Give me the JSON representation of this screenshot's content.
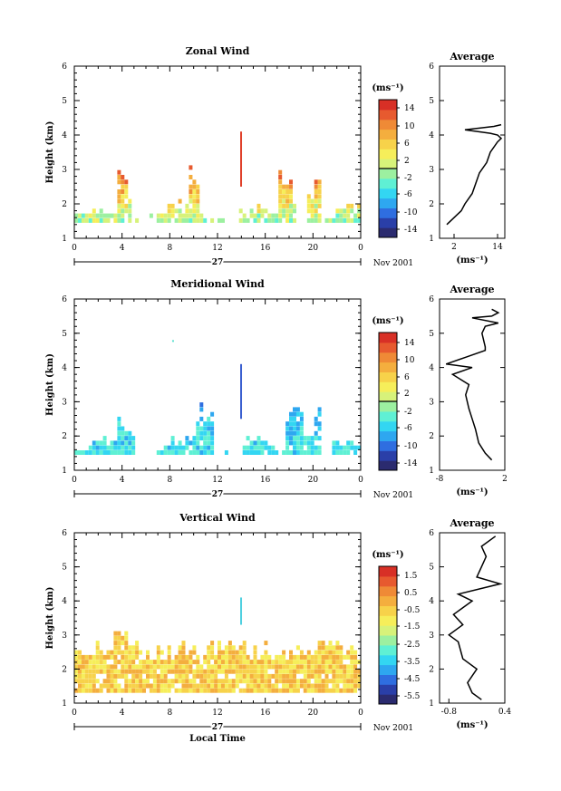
{
  "colors": {
    "zonal_scale": [
      "#2b2b6f",
      "#2a3fa8",
      "#2f6ee0",
      "#2ea7f0",
      "#33d6f2",
      "#5ff0d4",
      "#9cf0a0",
      "#d7f27a",
      "#f6ee5a",
      "#f7d24a",
      "#f4ae3e",
      "#ef8a36",
      "#e75a2f",
      "#d83026"
    ],
    "vertical_scale": [
      "#2b2b6f",
      "#2a3fa8",
      "#2f6ee0",
      "#2ea7f0",
      "#33d6f2",
      "#5ff0d4",
      "#9cf0a0",
      "#d7f27a",
      "#f6ee5a",
      "#f7d24a",
      "#f4ae3e",
      "#ef8a36",
      "#e75a2f",
      "#d83026"
    ]
  },
  "shared": {
    "x_ticks": [
      "0",
      "4",
      "8",
      "12",
      "16",
      "20",
      "0"
    ],
    "y_ticks": [
      "1",
      "2",
      "3",
      "4",
      "5",
      "6"
    ],
    "y_label": "Height (km)",
    "day_label": "27",
    "month_label": "Nov 2001",
    "colorbar_unit": "(ms⁻¹)",
    "avg_title": "Average",
    "avg_unit": "(ms⁻¹)",
    "x_label": "Local Time"
  },
  "chart_data": [
    {
      "type": "heatmap",
      "title": "Zonal Wind",
      "ylabel": "Height (km)",
      "xlabel": "",
      "x_range": [
        0,
        24
      ],
      "y_range": [
        1,
        6
      ],
      "colorbar_ticks": [
        "14",
        "10",
        "6",
        "2",
        "-2",
        "-6",
        "-10",
        "-14"
      ],
      "colorbar_range": [
        -16,
        16
      ],
      "average_profile": {
        "xlim": [
          -2,
          16
        ],
        "x_ticks": [
          "2",
          "14"
        ],
        "points": [
          [
            0,
            1.4
          ],
          [
            2,
            1.6
          ],
          [
            4,
            1.8
          ],
          [
            5,
            2.0
          ],
          [
            7,
            2.3
          ],
          [
            8,
            2.6
          ],
          [
            9,
            2.9
          ],
          [
            11,
            3.2
          ],
          [
            12,
            3.5
          ],
          [
            14,
            3.8
          ],
          [
            15,
            3.9
          ],
          [
            14,
            4.0
          ],
          [
            12,
            4.05
          ],
          [
            5,
            4.15
          ],
          [
            13,
            4.25
          ],
          [
            15,
            4.3
          ]
        ]
      }
    },
    {
      "type": "heatmap",
      "title": "Meridional Wind",
      "ylabel": "Height (km)",
      "xlabel": "",
      "x_range": [
        0,
        24
      ],
      "y_range": [
        1,
        6
      ],
      "colorbar_ticks": [
        "14",
        "10",
        "6",
        "2",
        "-2",
        "-6",
        "-10",
        "-14"
      ],
      "colorbar_range": [
        -16,
        16
      ],
      "average_profile": {
        "xlim": [
          -8,
          2
        ],
        "x_ticks": [
          "-8",
          "2"
        ],
        "points": [
          [
            0,
            1.3
          ],
          [
            -1,
            1.5
          ],
          [
            -2,
            1.8
          ],
          [
            -2.5,
            2.2
          ],
          [
            -3,
            2.5
          ],
          [
            -3.5,
            2.8
          ],
          [
            -4,
            3.2
          ],
          [
            -3.5,
            3.5
          ],
          [
            -6,
            3.8
          ],
          [
            -3,
            4.0
          ],
          [
            -7,
            4.1
          ],
          [
            -4,
            4.3
          ],
          [
            -1,
            4.5
          ],
          [
            -1,
            4.6
          ],
          [
            -1.5,
            5.0
          ],
          [
            -1,
            5.2
          ],
          [
            1,
            5.3
          ],
          [
            -3,
            5.45
          ],
          [
            0,
            5.5
          ],
          [
            1,
            5.6
          ],
          [
            0,
            5.7
          ]
        ]
      }
    },
    {
      "type": "heatmap",
      "title": "Vertical Wind",
      "ylabel": "Height (km)",
      "xlabel": "Local Time",
      "x_range": [
        0,
        24
      ],
      "y_range": [
        1,
        6
      ],
      "colorbar_ticks": [
        "1.5",
        "0.5",
        "-0.5",
        "-1.5",
        "-2.5",
        "-3.5",
        "-4.5",
        "-5.5"
      ],
      "colorbar_range": [
        -6,
        2
      ],
      "average_profile": {
        "xlim": [
          -1.0,
          0.4
        ],
        "x_ticks": [
          "-0.8",
          "0.4"
        ],
        "points": [
          [
            -0.1,
            1.1
          ],
          [
            -0.3,
            1.3
          ],
          [
            -0.4,
            1.6
          ],
          [
            -0.2,
            2.0
          ],
          [
            -0.5,
            2.3
          ],
          [
            -0.6,
            2.8
          ],
          [
            -0.8,
            3.0
          ],
          [
            -0.5,
            3.3
          ],
          [
            -0.7,
            3.6
          ],
          [
            -0.3,
            4.0
          ],
          [
            -0.6,
            4.2
          ],
          [
            0.3,
            4.5
          ],
          [
            -0.2,
            4.7
          ],
          [
            -0.1,
            5.0
          ],
          [
            0.0,
            5.3
          ],
          [
            -0.1,
            5.6
          ],
          [
            0.2,
            5.9
          ]
        ]
      }
    }
  ]
}
